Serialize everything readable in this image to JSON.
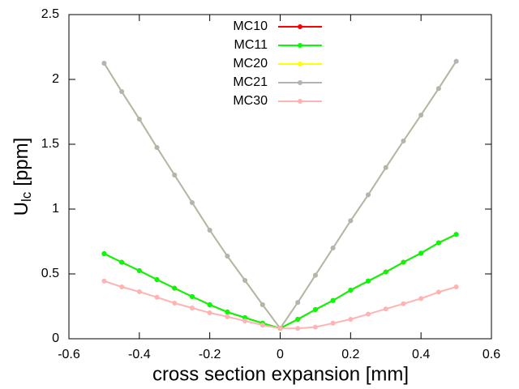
{
  "chart_data": {
    "type": "line",
    "xlabel": "cross section expansion [mm]",
    "ylabel": [
      "U",
      "lc",
      "[ppm]"
    ],
    "x": [
      -0.5,
      -0.45,
      -0.4,
      -0.35,
      -0.3,
      -0.25,
      -0.2,
      -0.15,
      -0.1,
      -0.05,
      0,
      0.05,
      0.1,
      0.15,
      0.2,
      0.25,
      0.3,
      0.35,
      0.4,
      0.45,
      0.5
    ],
    "series": [
      {
        "name": "MC10",
        "color": "#ff0000",
        "values": [
          0.656,
          0.59,
          0.525,
          0.456,
          0.39,
          0.325,
          0.2625,
          0.206,
          0.1625,
          0.12,
          0.08,
          0.15,
          0.225,
          0.295,
          0.375,
          0.445,
          0.515,
          0.59,
          0.66,
          0.74,
          0.805
        ]
      },
      {
        "name": "MC11",
        "color": "#00ff00",
        "values": [
          0.656,
          0.59,
          0.525,
          0.456,
          0.39,
          0.325,
          0.2625,
          0.206,
          0.1625,
          0.12,
          0.08,
          0.15,
          0.225,
          0.295,
          0.375,
          0.445,
          0.515,
          0.59,
          0.66,
          0.74,
          0.805
        ]
      },
      {
        "name": "MC20",
        "color": "#ffff00",
        "values": [
          2.125,
          1.906,
          1.694,
          1.475,
          1.2625,
          1.05,
          0.8375,
          0.6375,
          0.45,
          0.2625,
          0.08,
          0.28,
          0.49,
          0.7,
          0.91,
          1.11,
          1.32,
          1.525,
          1.725,
          1.93,
          2.14
        ]
      },
      {
        "name": "MC21",
        "color": "#b3b3b3",
        "values": [
          2.125,
          1.906,
          1.694,
          1.475,
          1.2625,
          1.05,
          0.8375,
          0.6375,
          0.45,
          0.2625,
          0.08,
          0.28,
          0.49,
          0.7,
          0.91,
          1.11,
          1.32,
          1.525,
          1.725,
          1.93,
          2.14
        ]
      },
      {
        "name": "MC30",
        "color": "#ffb3b3",
        "values": [
          0.445,
          0.4,
          0.3625,
          0.32,
          0.275,
          0.2375,
          0.2,
          0.17,
          0.1375,
          0.105,
          0.08,
          0.08,
          0.09,
          0.12,
          0.15,
          0.19,
          0.23,
          0.27,
          0.31,
          0.36,
          0.4
        ]
      }
    ],
    "xlim": [
      -0.6,
      0.6
    ],
    "xticks": [
      -0.6,
      -0.4,
      -0.2,
      0,
      0.2,
      0.4,
      0.6
    ],
    "ylim": [
      0,
      2.5
    ],
    "yticks": [
      0,
      0.5,
      1,
      1.5,
      2,
      2.5
    ],
    "grid": false,
    "legend": "top"
  }
}
